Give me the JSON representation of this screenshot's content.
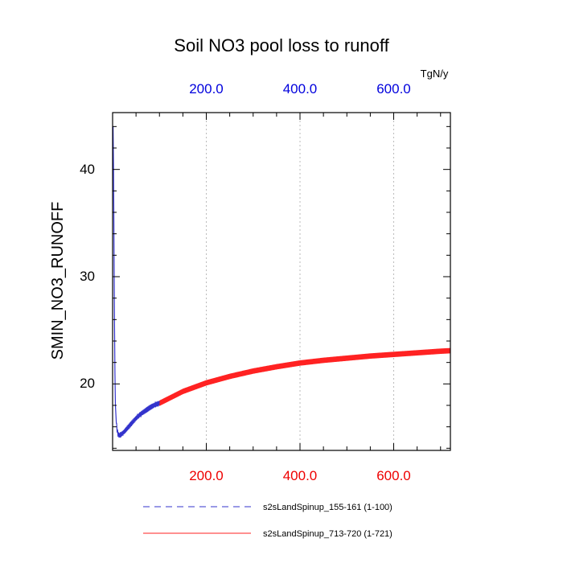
{
  "chart_data": {
    "type": "line",
    "title": "Soil NO3 pool loss to runoff",
    "ylabel": "SMIN_NO3_RUNOFF",
    "units": "TgN/y",
    "xlim": [
      0,
      721
    ],
    "ylim": [
      13.8,
      45.3
    ],
    "grid": "vertical dotted lines at x ticks",
    "legend_position": "bottom",
    "x_ticks": [
      200,
      400,
      600
    ],
    "x_tick_labels_bottom": [
      "200.0",
      "400.0",
      "600.0"
    ],
    "x_tick_labels_top": [
      "200.0",
      "400.0",
      "600.0"
    ],
    "y_ticks": [
      20,
      30,
      40
    ],
    "y_tick_labels": [
      "20",
      "30",
      "40"
    ],
    "colors": {
      "top_axis": "#0000dd",
      "bottom_axis": "#ee0000",
      "series_blue": "#3333cc",
      "series_red": "#ff2222"
    },
    "series": [
      {
        "name": "s2sLandSpinup_155-161 (1-100)",
        "color": "#3333cc",
        "style": "dashed",
        "x": [
          1,
          2,
          3,
          4,
          5,
          6,
          8,
          10,
          12,
          14,
          17,
          20,
          25,
          30,
          35,
          40,
          50,
          60,
          70,
          80,
          90,
          100
        ],
        "y": [
          44,
          40,
          33,
          26,
          21,
          18,
          16.3,
          15.6,
          15.3,
          15.2,
          15.25,
          15.35,
          15.55,
          15.8,
          16.05,
          16.3,
          16.8,
          17.2,
          17.5,
          17.8,
          18.05,
          18.2
        ]
      },
      {
        "name": "s2sLandSpinup_713-720 (1-721)",
        "color": "#ff2222",
        "style": "solid",
        "x": [
          100,
          150,
          200,
          250,
          300,
          350,
          400,
          450,
          500,
          550,
          600,
          650,
          700,
          721
        ],
        "y": [
          18.2,
          19.3,
          20.1,
          20.7,
          21.2,
          21.6,
          21.95,
          22.2,
          22.4,
          22.6,
          22.75,
          22.9,
          23.05,
          23.1
        ],
        "seasonal_amplitude": 0.5
      }
    ]
  }
}
